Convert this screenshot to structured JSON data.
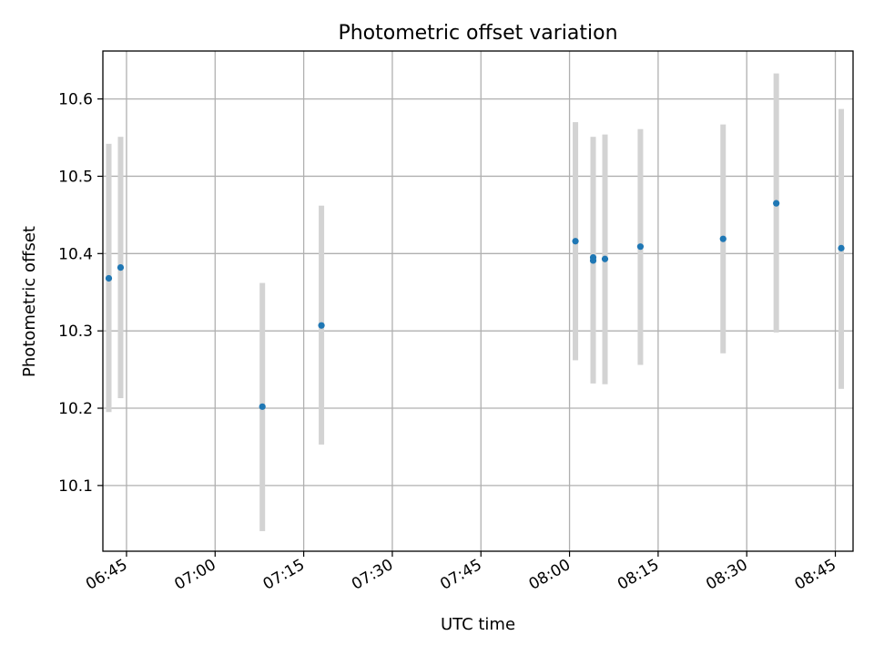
{
  "chart_data": {
    "type": "scatter",
    "title": "Photometric offset variation",
    "xlabel": "UTC time",
    "ylabel": "Photometric offset",
    "x_axis_kind": "time",
    "xlim": [
      "06:41",
      "08:48"
    ],
    "ylim": [
      10.015,
      10.662
    ],
    "xticks": [
      "06:45",
      "07:00",
      "07:15",
      "07:30",
      "07:45",
      "08:00",
      "08:15",
      "08:30",
      "08:45"
    ],
    "yticks": [
      10.1,
      10.2,
      10.3,
      10.4,
      10.5,
      10.6
    ],
    "ytick_labels": [
      "10.1",
      "10.2",
      "10.3",
      "10.4",
      "10.5",
      "10.6"
    ],
    "grid": true,
    "colors": {
      "points": "#1f77b4",
      "errorbars": "#d3d3d3",
      "grid": "#b0b0b0",
      "axes": "#000000"
    },
    "series": [
      {
        "points": [
          {
            "x": "06:42",
            "y": 10.368,
            "ymin": 10.195,
            "ymax": 10.542
          },
          {
            "x": "06:44",
            "y": 10.382,
            "ymin": 10.213,
            "ymax": 10.551
          },
          {
            "x": "07:08",
            "y": 10.202,
            "ymin": 10.041,
            "ymax": 10.362
          },
          {
            "x": "07:18",
            "y": 10.307,
            "ymin": 10.153,
            "ymax": 10.462
          },
          {
            "x": "08:01",
            "y": 10.416,
            "ymin": 10.262,
            "ymax": 10.57
          },
          {
            "x": "08:04",
            "y": 10.391,
            "ymin": 10.232,
            "ymax": 10.551
          },
          {
            "x": "08:04",
            "y": 10.395,
            "ymin": 10.24,
            "ymax": 10.55
          },
          {
            "x": "08:06",
            "y": 10.393,
            "ymin": 10.231,
            "ymax": 10.554
          },
          {
            "x": "08:12",
            "y": 10.409,
            "ymin": 10.256,
            "ymax": 10.561
          },
          {
            "x": "08:26",
            "y": 10.419,
            "ymin": 10.271,
            "ymax": 10.567
          },
          {
            "x": "08:35",
            "y": 10.465,
            "ymin": 10.298,
            "ymax": 10.633
          },
          {
            "x": "08:46",
            "y": 10.407,
            "ymin": 10.225,
            "ymax": 10.587
          }
        ]
      }
    ]
  }
}
